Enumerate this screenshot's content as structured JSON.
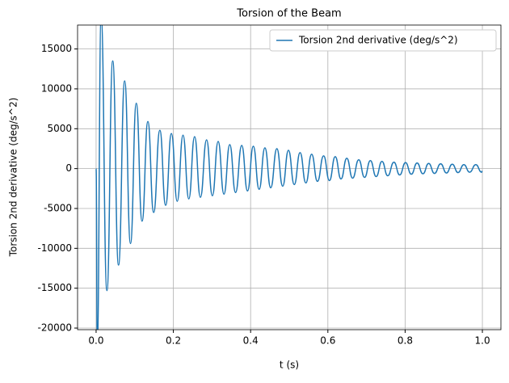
{
  "chart_data": {
    "type": "line",
    "title": "Torsion of the Beam",
    "x_label": "t (s)",
    "y_label": "Torsion 2nd derivative (deg/s^2)",
    "x": [
      0,
      0.003,
      0.013,
      0.028,
      0.043,
      0.058,
      0.074,
      0.089,
      0.104,
      0.119,
      0.134,
      0.149,
      0.165,
      0.18,
      0.195,
      0.21,
      0.225,
      0.24,
      0.255,
      0.27,
      0.286,
      0.301,
      0.316,
      0.331,
      0.346,
      0.361,
      0.377,
      0.392,
      0.407,
      0.422,
      0.437,
      0.452,
      0.468,
      0.483,
      0.498,
      0.513,
      0.528,
      0.543,
      0.558,
      0.573,
      0.589,
      0.604,
      0.619,
      0.634,
      0.649,
      0.664,
      0.68,
      0.695,
      0.71,
      0.725,
      0.74,
      0.755,
      0.771,
      0.786,
      0.801,
      0.816,
      0.831,
      0.846,
      0.861,
      0.876,
      0.892,
      0.907,
      0.922,
      0.937,
      0.952,
      0.967,
      0.983,
      0.998,
      1.0
    ],
    "series": [
      {
        "name": "Torsion 2nd derivative (deg/s^2)",
        "color": "#1f77b4",
        "values": [
          0,
          -22000,
          19000,
          -15300,
          13500,
          -12100,
          11000,
          -9400,
          8200,
          -6600,
          5900,
          -5500,
          4800,
          -4600,
          4400,
          -4100,
          4200,
          -3800,
          4000,
          -3600,
          3600,
          -3400,
          3400,
          -3200,
          3000,
          -3000,
          2900,
          -2800,
          2800,
          -2600,
          2600,
          -2400,
          2500,
          -2200,
          2300,
          -2000,
          2000,
          -1800,
          1800,
          -1600,
          1600,
          -1500,
          1500,
          -1300,
          1300,
          -1200,
          1100,
          -1100,
          1000,
          -1000,
          900,
          -900,
          800,
          -800,
          750,
          -700,
          700,
          -650,
          650,
          -600,
          600,
          -550,
          550,
          -500,
          500,
          -450,
          500,
          -450,
          -300
        ]
      }
    ],
    "xlim": [
      -0.048,
      1.048
    ],
    "xticks": [
      {
        "value": 0,
        "label": "0.0"
      },
      0.2,
      0.4,
      0.6,
      0.8,
      {
        "value": 1,
        "label": "1.0"
      }
    ],
    "ylim": [
      -20200,
      18000
    ],
    "yticks": [
      -20000,
      -15000,
      -10000,
      -5000,
      0,
      5000,
      10000,
      15000
    ],
    "grid": true,
    "legend": "upper right"
  }
}
